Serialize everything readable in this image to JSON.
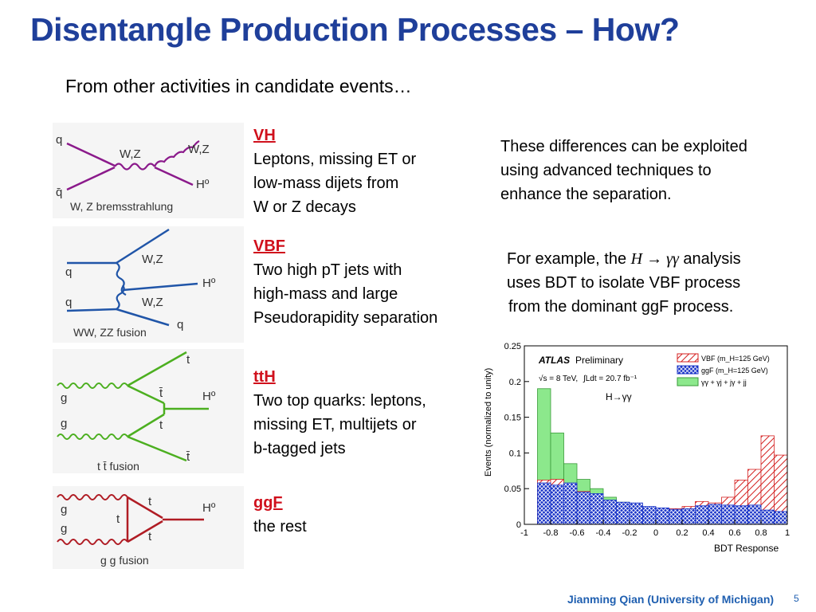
{
  "slide": {
    "title": "Disentangle Production Processes – How?",
    "subtitle": "From other activities in candidate events…",
    "footer": "Jianming Qian (University of Michigan)",
    "page_number": "5"
  },
  "processes": [
    {
      "name": "VH",
      "description": "Leptons, missing ET or\nlow-mass dijets from\nW or Z decays"
    },
    {
      "name": "VBF",
      "description": "Two high pT jets with\nhigh-mass  and large\nPseudorapidity separation"
    },
    {
      "name": "ttH",
      "description": "Two top quarks: leptons,\nmissing ET, multijets or\nb-tagged jets"
    },
    {
      "name": "ggF",
      "description": "the rest"
    }
  ],
  "notes": {
    "differences": "These differences can be exploited\nusing advanced  techniques to\nenhance  the separation.",
    "example_prefix": "For example, the",
    "example_formula": "H → γγ",
    "example_suffix": "analysis",
    "example_line2": "uses BDT to isolate VBF process",
    "example_line3": "from the dominant ggF process."
  },
  "diagrams": {
    "vh": {
      "in1": "q",
      "in2": "q̄",
      "boson": "W,Z",
      "out1": "W,Z",
      "out2": "Hº",
      "caption": "W, Z bremsstrahlung",
      "color": "#8b1a8b"
    },
    "vbf": {
      "in1": "q",
      "in2": "q",
      "boson1": "W,Z",
      "boson2": "W,Z",
      "out": "Hº",
      "out_q": "q",
      "caption": "WW, ZZ fusion",
      "color": "#2055a8"
    },
    "tth": {
      "in1": "g",
      "in2": "g",
      "t1": "t",
      "tbar1": "t̄",
      "t2": "t",
      "tbar2": "t̄",
      "out": "Hº",
      "caption": "t t̄ fusion",
      "color": "#4caf20"
    },
    "ggf": {
      "in1": "g",
      "in2": "g",
      "t1": "t",
      "t2": "t",
      "t3": "t",
      "out": "Hº",
      "caption": "g g fusion",
      "color": "#b01c24"
    }
  },
  "chart_data": {
    "type": "bar",
    "title": "",
    "xlabel": "BDT Response",
    "ylabel": "Events (normalized to unity)",
    "xlim": [
      -1,
      1
    ],
    "ylim": [
      0,
      0.25
    ],
    "xticks": [
      "-1",
      "-0.8",
      "-0.6",
      "-0.4",
      "-0.2",
      "0",
      "0.2",
      "0.4",
      "0.6",
      "0.8",
      "1"
    ],
    "yticks": [
      "0",
      "0.05",
      "0.1",
      "0.15",
      "0.2",
      "0.25"
    ],
    "annotation_experiment": "ATLAS",
    "annotation_status": "Preliminary",
    "annotation_energy": "√s = 8 TeV,",
    "annotation_lumi": "∫Ldt = 20.7 fb⁻¹",
    "annotation_channel": "H→γγ",
    "bin_edges": [
      -0.9,
      -0.8,
      -0.7,
      -0.6,
      -0.5,
      -0.4,
      -0.3,
      -0.2,
      -0.1,
      0.0,
      0.1,
      0.2,
      0.3,
      0.4,
      0.5,
      0.6,
      0.7,
      0.8,
      0.9,
      1.0
    ],
    "series": [
      {
        "name": "VBF (m_H=125 GeV)",
        "color": "#d42020",
        "style": "hatched",
        "values": [
          0.062,
          0.063,
          0.057,
          0.046,
          0.038,
          0.03,
          0.027,
          0.026,
          0.024,
          0.021,
          0.022,
          0.025,
          0.032,
          0.03,
          0.038,
          0.062,
          0.077,
          0.124,
          0.097
        ]
      },
      {
        "name": "ggF (m_H=125 GeV)",
        "color": "#1a34c8",
        "style": "crosshatched",
        "values": [
          0.058,
          0.055,
          0.058,
          0.045,
          0.043,
          0.034,
          0.031,
          0.03,
          0.025,
          0.023,
          0.021,
          0.022,
          0.026,
          0.028,
          0.027,
          0.026,
          0.027,
          0.02,
          0.018
        ]
      },
      {
        "name": "γγ + γj + jγ + jj",
        "color": "#8ce88c",
        "style": "filled",
        "values": [
          0.19,
          0.128,
          0.085,
          0.063,
          0.05,
          0.038,
          0.031,
          0.026,
          0.022,
          0.019,
          0.017,
          0.015,
          0.013,
          0.012,
          0.01,
          0.009,
          0.008,
          0.006,
          0.004
        ]
      }
    ],
    "legend_position": "top-right"
  }
}
